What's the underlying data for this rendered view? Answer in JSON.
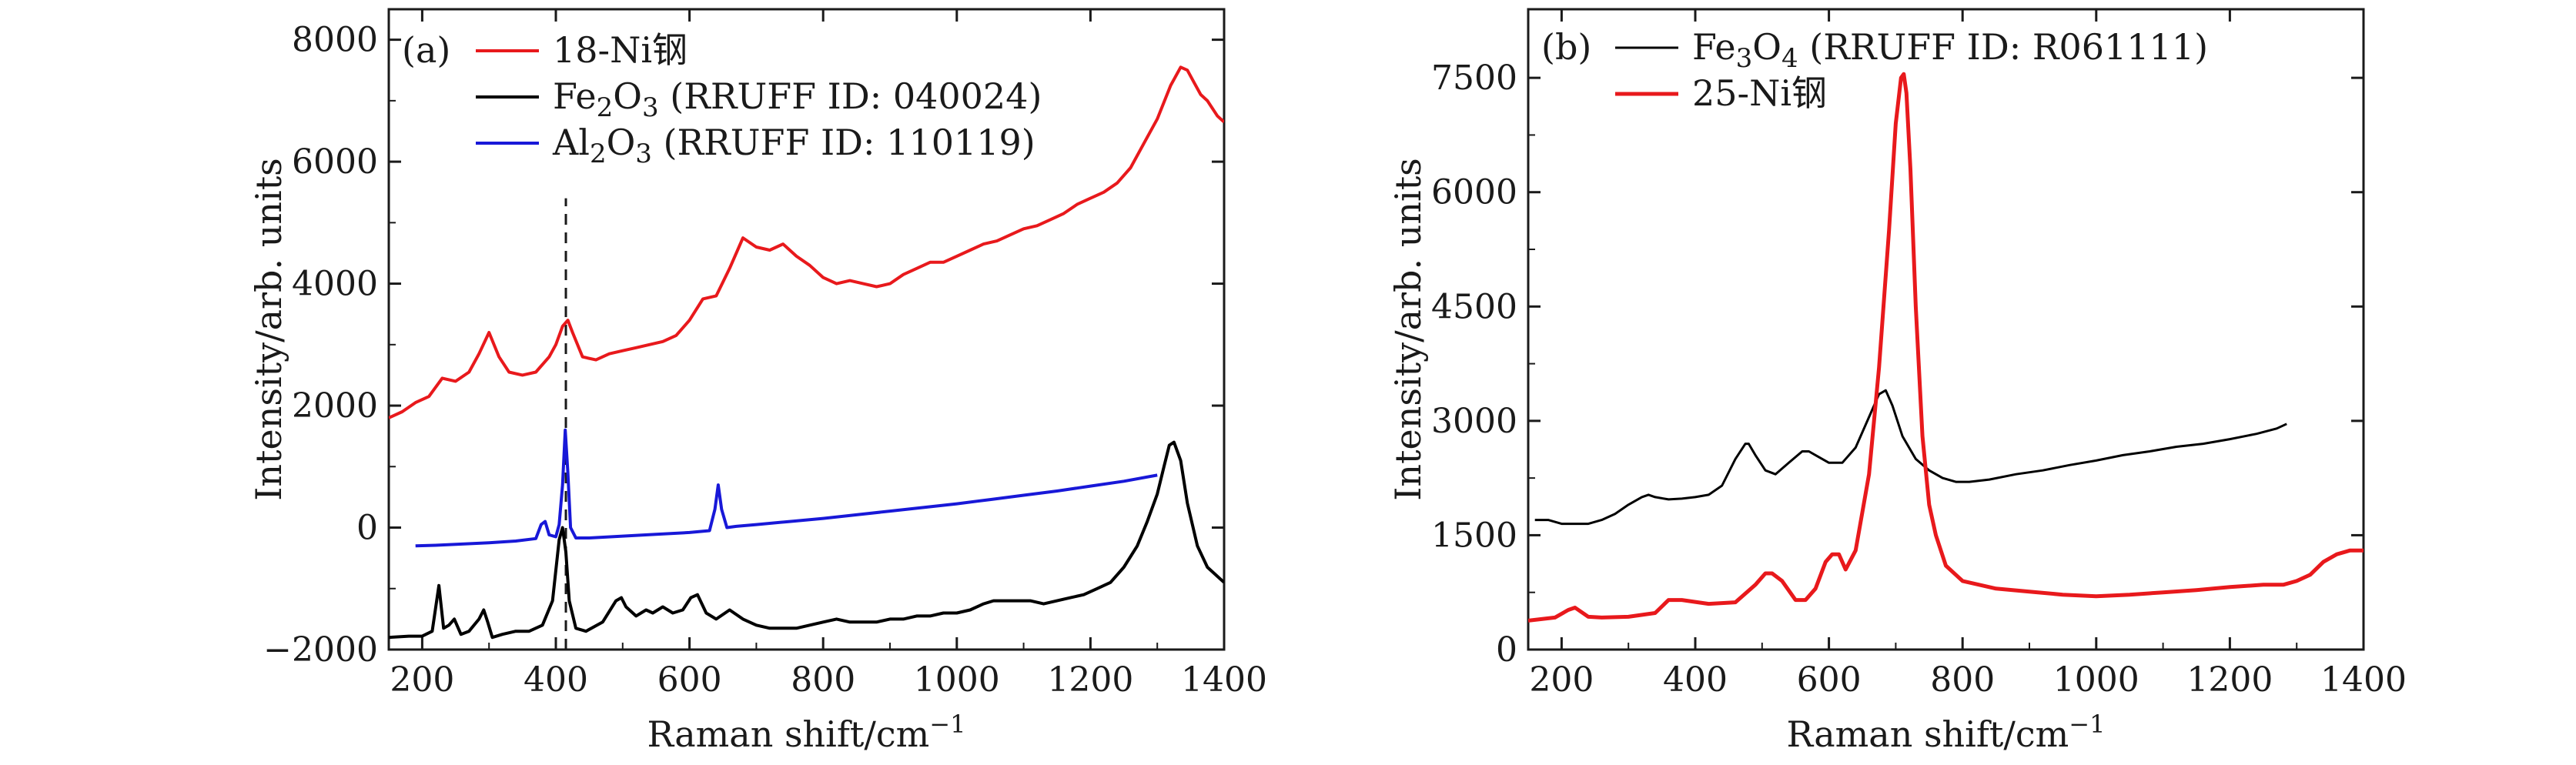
{
  "chart_data": [
    {
      "type": "line",
      "panel_label": "(a)",
      "xlabel": "Raman shift/cm",
      "xlabel_sup": "−1",
      "ylabel": "Intensity/arb. units",
      "xlim": [
        150,
        1400
      ],
      "ylim": [
        -2000,
        8500
      ],
      "xticks": [
        200,
        400,
        600,
        800,
        1000,
        1200,
        1400
      ],
      "yticks": [
        -2000,
        0,
        2000,
        4000,
        6000,
        8000
      ],
      "ytick_labels": [
        "−2000",
        "0",
        "2000",
        "4000",
        "6000",
        "8000"
      ],
      "grid": false,
      "legend_position": "top-left",
      "reference_line_x": 415,
      "reference_line_y": [
        -2000,
        5400
      ],
      "series": [
        {
          "name": "18-Ni钢",
          "legend_parts": [
            {
              "t": "18-Ni钢"
            }
          ],
          "color": "#e8191c",
          "x": [
            150,
            170,
            190,
            210,
            230,
            250,
            270,
            285,
            300,
            315,
            330,
            350,
            370,
            390,
            400,
            410,
            418,
            425,
            440,
            460,
            480,
            500,
            520,
            540,
            560,
            580,
            600,
            620,
            640,
            660,
            680,
            700,
            720,
            740,
            760,
            780,
            800,
            820,
            840,
            860,
            880,
            900,
            920,
            940,
            960,
            980,
            1000,
            1020,
            1040,
            1060,
            1080,
            1100,
            1120,
            1140,
            1160,
            1180,
            1200,
            1220,
            1240,
            1260,
            1280,
            1300,
            1320,
            1335,
            1345,
            1355,
            1365,
            1375,
            1390,
            1400
          ],
          "y": [
            1800,
            1900,
            2050,
            2150,
            2450,
            2400,
            2550,
            2850,
            3200,
            2800,
            2550,
            2500,
            2550,
            2800,
            3000,
            3300,
            3400,
            3200,
            2800,
            2750,
            2850,
            2900,
            2950,
            3000,
            3050,
            3150,
            3400,
            3750,
            3800,
            4250,
            4750,
            4600,
            4550,
            4650,
            4450,
            4300,
            4100,
            4000,
            4050,
            4000,
            3950,
            4000,
            4150,
            4250,
            4350,
            4350,
            4450,
            4550,
            4650,
            4700,
            4800,
            4900,
            4950,
            5050,
            5150,
            5300,
            5400,
            5500,
            5650,
            5900,
            6300,
            6700,
            7250,
            7550,
            7500,
            7300,
            7100,
            7000,
            6750,
            6650
          ]
        },
        {
          "name": "Fe2O3 (RRUFF ID: 040024)",
          "legend_parts": [
            {
              "t": "Fe"
            },
            {
              "t": "2",
              "sub": true
            },
            {
              "t": "O"
            },
            {
              "t": "3",
              "sub": true
            },
            {
              "t": " (RRUFF ID: 040024)"
            }
          ],
          "color": "#000000",
          "x": [
            150,
            180,
            200,
            215,
            225,
            232,
            240,
            248,
            258,
            270,
            285,
            292,
            298,
            305,
            320,
            340,
            360,
            380,
            395,
            405,
            410,
            415,
            420,
            430,
            445,
            470,
            490,
            498,
            505,
            520,
            535,
            545,
            560,
            575,
            590,
            602,
            612,
            625,
            640,
            660,
            680,
            700,
            720,
            740,
            760,
            780,
            800,
            820,
            840,
            860,
            880,
            900,
            920,
            940,
            960,
            980,
            1000,
            1020,
            1040,
            1055,
            1070,
            1090,
            1110,
            1130,
            1150,
            1170,
            1190,
            1210,
            1230,
            1250,
            1270,
            1285,
            1300,
            1310,
            1318,
            1325,
            1335,
            1345,
            1360,
            1375,
            1390,
            1400
          ],
          "y": [
            -1800,
            -1780,
            -1780,
            -1700,
            -950,
            -1650,
            -1600,
            -1500,
            -1750,
            -1700,
            -1500,
            -1350,
            -1550,
            -1800,
            -1750,
            -1700,
            -1700,
            -1600,
            -1200,
            -200,
            0,
            -400,
            -1200,
            -1650,
            -1700,
            -1550,
            -1200,
            -1150,
            -1300,
            -1450,
            -1350,
            -1400,
            -1300,
            -1400,
            -1350,
            -1150,
            -1100,
            -1400,
            -1500,
            -1350,
            -1500,
            -1600,
            -1650,
            -1650,
            -1650,
            -1600,
            -1550,
            -1500,
            -1550,
            -1550,
            -1550,
            -1500,
            -1500,
            -1450,
            -1450,
            -1400,
            -1400,
            -1350,
            -1250,
            -1200,
            -1200,
            -1200,
            -1200,
            -1250,
            -1200,
            -1150,
            -1100,
            -1000,
            -900,
            -650,
            -300,
            100,
            550,
            1000,
            1350,
            1400,
            1100,
            400,
            -300,
            -650,
            -800,
            -900
          ]
        },
        {
          "name": "Al2O3 (RRUFF ID: 110119)",
          "legend_parts": [
            {
              "t": "Al"
            },
            {
              "t": "2",
              "sub": true
            },
            {
              "t": "O"
            },
            {
              "t": "3",
              "sub": true
            },
            {
              "t": " (RRUFF ID: 110119)"
            }
          ],
          "color": "#1818d8",
          "x": [
            190,
            220,
            260,
            300,
            340,
            370,
            378,
            384,
            390,
            400,
            405,
            410,
            414,
            418,
            422,
            430,
            450,
            500,
            550,
            600,
            630,
            638,
            643,
            648,
            656,
            670,
            700,
            750,
            800,
            850,
            900,
            950,
            1000,
            1050,
            1100,
            1150,
            1200,
            1250,
            1300
          ],
          "y": [
            -300,
            -290,
            -270,
            -250,
            -220,
            -180,
            50,
            100,
            -120,
            -150,
            50,
            700,
            1600,
            900,
            0,
            -170,
            -170,
            -140,
            -110,
            -80,
            -50,
            300,
            700,
            300,
            0,
            20,
            50,
            100,
            150,
            210,
            270,
            330,
            390,
            460,
            530,
            600,
            680,
            760,
            860
          ]
        }
      ]
    },
    {
      "type": "line",
      "panel_label": "(b)",
      "xlabel": "Raman shift/cm",
      "xlabel_sup": "−1",
      "ylabel": "Intensity/arb. units",
      "xlim": [
        150,
        1400
      ],
      "ylim": [
        0,
        8400
      ],
      "xticks": [
        200,
        400,
        600,
        800,
        1000,
        1200,
        1400
      ],
      "yticks": [
        0,
        1500,
        3000,
        4500,
        6000,
        7500
      ],
      "ytick_labels": [
        "0",
        "1500",
        "3000",
        "4500",
        "6000",
        "7500"
      ],
      "grid": false,
      "legend_position": "top-left",
      "series": [
        {
          "name": "Fe3O4 (RRUFF ID: R061111)",
          "legend_parts": [
            {
              "t": "Fe"
            },
            {
              "t": "3",
              "sub": true
            },
            {
              "t": "O"
            },
            {
              "t": "4",
              "sub": true
            },
            {
              "t": " (RRUFF ID: R061111)"
            }
          ],
          "color": "#000000",
          "line_width": 3,
          "x": [
            160,
            180,
            200,
            220,
            240,
            260,
            280,
            300,
            320,
            330,
            340,
            360,
            380,
            400,
            420,
            440,
            460,
            475,
            480,
            490,
            505,
            520,
            540,
            560,
            570,
            580,
            600,
            620,
            640,
            660,
            675,
            685,
            695,
            710,
            730,
            750,
            770,
            790,
            810,
            840,
            880,
            920,
            960,
            1000,
            1040,
            1080,
            1120,
            1160,
            1200,
            1240,
            1270,
            1285
          ],
          "y": [
            1700,
            1700,
            1650,
            1650,
            1650,
            1700,
            1780,
            1900,
            2000,
            2030,
            2000,
            1970,
            1980,
            2000,
            2030,
            2150,
            2500,
            2700,
            2700,
            2550,
            2350,
            2300,
            2450,
            2600,
            2600,
            2550,
            2450,
            2450,
            2650,
            3050,
            3350,
            3400,
            3200,
            2800,
            2500,
            2350,
            2250,
            2200,
            2200,
            2230,
            2300,
            2350,
            2420,
            2480,
            2550,
            2600,
            2660,
            2700,
            2760,
            2830,
            2900,
            2960
          ]
        },
        {
          "name": "25-Ni钢",
          "legend_parts": [
            {
              "t": "25-Ni钢"
            }
          ],
          "color": "#e8191c",
          "line_width": 5,
          "x": [
            150,
            170,
            190,
            210,
            220,
            240,
            260,
            300,
            340,
            360,
            380,
            420,
            460,
            490,
            505,
            515,
            530,
            550,
            565,
            580,
            595,
            605,
            615,
            625,
            640,
            660,
            675,
            690,
            700,
            708,
            712,
            716,
            722,
            730,
            740,
            750,
            760,
            775,
            800,
            850,
            900,
            950,
            1000,
            1050,
            1100,
            1150,
            1200,
            1250,
            1280,
            1300,
            1320,
            1340,
            1360,
            1380,
            1400
          ],
          "y": [
            380,
            400,
            420,
            520,
            550,
            430,
            420,
            430,
            480,
            650,
            650,
            600,
            620,
            850,
            1000,
            1000,
            900,
            650,
            650,
            800,
            1150,
            1250,
            1250,
            1050,
            1300,
            2300,
            3700,
            5500,
            6900,
            7500,
            7550,
            7300,
            6300,
            4500,
            2800,
            1900,
            1500,
            1100,
            900,
            800,
            760,
            720,
            700,
            720,
            750,
            780,
            820,
            850,
            850,
            900,
            980,
            1150,
            1250,
            1300,
            1300
          ]
        }
      ]
    }
  ]
}
